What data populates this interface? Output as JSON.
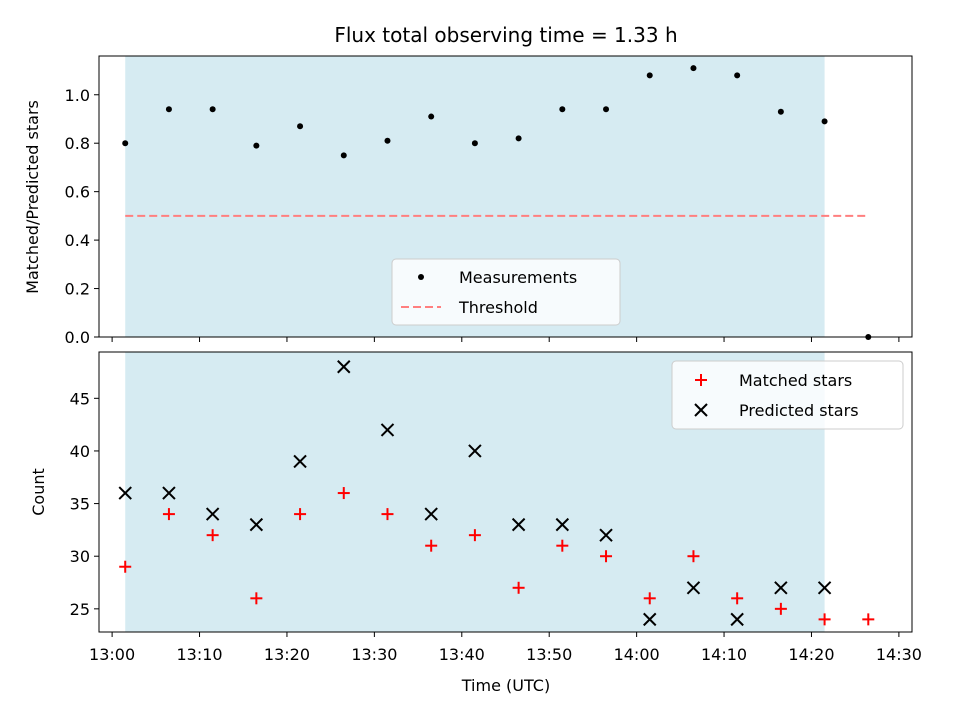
{
  "chart_data": [
    {
      "type": "scatter",
      "title": "Flux total observing time = 1.33 h",
      "xlabel": "",
      "ylabel": "Matched/Predicted stars",
      "ylim": [
        0,
        1.16
      ],
      "yticks": [
        "0.0",
        "0.2",
        "0.4",
        "0.6",
        "0.8",
        "1.0"
      ],
      "shaded_span": {
        "start": "13:01:30",
        "end": "14:21:30",
        "color": "#add8e6"
      },
      "series": [
        {
          "name": "Measurements",
          "marker": "dot",
          "color": "#000000",
          "points": [
            [
              "13:01:30",
              0.8
            ],
            [
              "13:06:30",
              0.94
            ],
            [
              "13:11:30",
              0.94
            ],
            [
              "13:16:30",
              0.79
            ],
            [
              "13:21:30",
              0.87
            ],
            [
              "13:26:30",
              0.75
            ],
            [
              "13:31:30",
              0.81
            ],
            [
              "13:36:30",
              0.91
            ],
            [
              "13:41:30",
              0.8
            ],
            [
              "13:46:30",
              0.82
            ],
            [
              "13:51:30",
              0.94
            ],
            [
              "13:56:30",
              0.94
            ],
            [
              "14:01:30",
              1.08
            ],
            [
              "14:06:30",
              1.11
            ],
            [
              "14:11:30",
              1.08
            ],
            [
              "14:16:30",
              0.93
            ],
            [
              "14:21:30",
              0.89
            ],
            [
              "14:26:30",
              0.0
            ]
          ]
        },
        {
          "name": "Threshold",
          "style": "dashed",
          "color": "#ff7f7f",
          "points": [
            [
              "13:01:30",
              0.5
            ],
            [
              "14:26:30",
              0.5
            ]
          ]
        }
      ],
      "legend": "lower-center"
    },
    {
      "type": "scatter",
      "xlabel": "Time (UTC)",
      "ylabel": "Count",
      "ylim": [
        22.8,
        49.4
      ],
      "yticks": [
        "25",
        "30",
        "35",
        "40",
        "45"
      ],
      "xticks": [
        "13:00",
        "13:10",
        "13:20",
        "13:30",
        "13:40",
        "13:50",
        "14:00",
        "14:10",
        "14:20",
        "14:30"
      ],
      "shaded_span": {
        "start": "13:01:30",
        "end": "14:21:30",
        "color": "#add8e6"
      },
      "series": [
        {
          "name": "Matched stars",
          "marker": "plus",
          "color": "#ff0000",
          "points": [
            [
              "13:01:30",
              29
            ],
            [
              "13:06:30",
              34
            ],
            [
              "13:11:30",
              32
            ],
            [
              "13:16:30",
              26
            ],
            [
              "13:21:30",
              34
            ],
            [
              "13:26:30",
              36
            ],
            [
              "13:31:30",
              34
            ],
            [
              "13:36:30",
              31
            ],
            [
              "13:41:30",
              32
            ],
            [
              "13:46:30",
              27
            ],
            [
              "13:51:30",
              31
            ],
            [
              "13:56:30",
              30
            ],
            [
              "14:01:30",
              26
            ],
            [
              "14:06:30",
              30
            ],
            [
              "14:11:30",
              26
            ],
            [
              "14:16:30",
              25
            ],
            [
              "14:21:30",
              24
            ],
            [
              "14:26:30",
              24
            ]
          ]
        },
        {
          "name": "Predicted stars",
          "marker": "x",
          "color": "#000000",
          "points": [
            [
              "13:01:30",
              36
            ],
            [
              "13:06:30",
              36
            ],
            [
              "13:11:30",
              34
            ],
            [
              "13:16:30",
              33
            ],
            [
              "13:21:30",
              39
            ],
            [
              "13:26:30",
              48
            ],
            [
              "13:31:30",
              42
            ],
            [
              "13:36:30",
              34
            ],
            [
              "13:41:30",
              40
            ],
            [
              "13:46:30",
              33
            ],
            [
              "13:51:30",
              33
            ],
            [
              "13:56:30",
              32
            ],
            [
              "14:01:30",
              24
            ],
            [
              "14:06:30",
              27
            ],
            [
              "14:11:30",
              24
            ],
            [
              "14:16:30",
              27
            ],
            [
              "14:21:30",
              27
            ]
          ]
        }
      ],
      "legend": "top-right"
    }
  ]
}
